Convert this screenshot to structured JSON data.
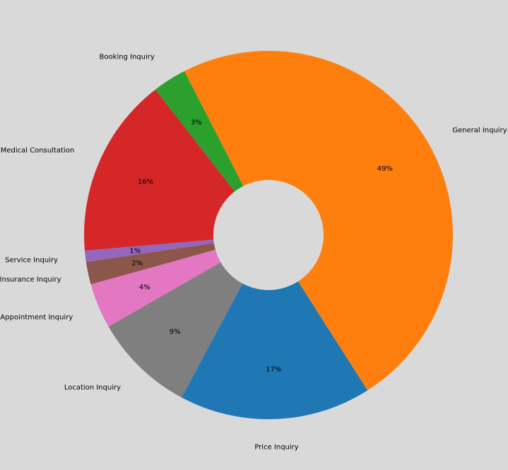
{
  "chart_data": {
    "type": "pie",
    "title": "",
    "donut": true,
    "start_angle_deg": 90,
    "direction": "counterclockwise",
    "slices": [
      {
        "label": "Price Inquiry",
        "value": 17,
        "pct_label": "17%",
        "color": "#1f77b4"
      },
      {
        "label": "General Inquiry",
        "value": 49,
        "pct_label": "49%",
        "color": "#ff7f0e"
      },
      {
        "label": "Booking Inquiry",
        "value": 3,
        "pct_label": "3%",
        "color": "#2ca02c"
      },
      {
        "label": "Medical Consultation",
        "value": 16,
        "pct_label": "16%",
        "color": "#d62728"
      },
      {
        "label": "Service Inquiry",
        "value": 1,
        "pct_label": "1%",
        "color": "#9467bd"
      },
      {
        "label": "Insurance Inquiry",
        "value": 2,
        "pct_label": "2%",
        "color": "#8c564b"
      },
      {
        "label": "Appointment Inquiry",
        "value": 4,
        "pct_label": "4%",
        "color": "#e377c2"
      },
      {
        "label": "Location Inquiry",
        "value": 9,
        "pct_label": "9%",
        "color": "#7f7f7f"
      }
    ],
    "legend": "none",
    "background": "#d9d9d9"
  }
}
